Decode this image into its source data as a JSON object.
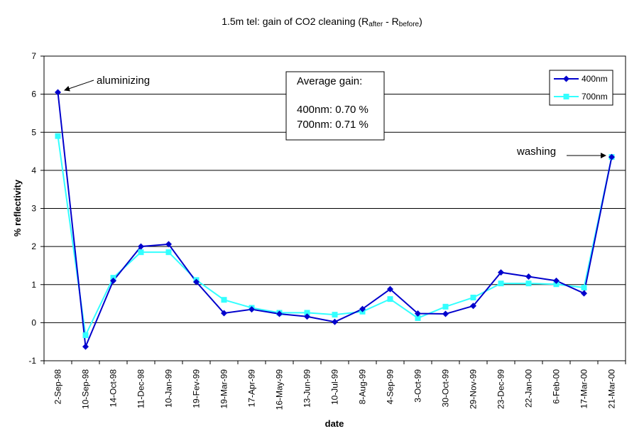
{
  "chart_data": {
    "type": "line",
    "title_main": "1.5m tel: gain of CO2 cleaning (R",
    "title_sub1": "after",
    "title_mid": " - R",
    "title_sub2": "before",
    "title_end": ")",
    "xlabel": "date",
    "ylabel": "% reflectivity",
    "ylim": [
      -1,
      7
    ],
    "yticks": [
      -1,
      0,
      1,
      2,
      3,
      4,
      5,
      6,
      7
    ],
    "grid": true,
    "legend_position": "top-right",
    "categories": [
      "2-Sep-98",
      "10-Sep-98",
      "14-Oct-98",
      "11-Dec-98",
      "10-Jan-99",
      "19-Fev-99",
      "19-Mar-99",
      "17-Apr-99",
      "16-May-99",
      "13-Jun-99",
      "10-Jul-99",
      "8-Aug-99",
      "4-Sep-99",
      "3-Oct-99",
      "30-Oct-99",
      "29-Nov-99",
      "23-Dec-99",
      "22-Jan-00",
      "6-Feb-00",
      "17-Mar-00",
      "21-Mar-00"
    ],
    "series": [
      {
        "name": "400nm",
        "color": "#0000cc",
        "marker": "diamond",
        "values": [
          6.05,
          -0.63,
          1.1,
          2.0,
          2.06,
          1.07,
          0.25,
          0.35,
          0.23,
          0.16,
          0.02,
          0.36,
          0.88,
          0.24,
          0.23,
          0.44,
          1.32,
          1.21,
          1.1,
          0.77,
          4.35
        ]
      },
      {
        "name": "700nm",
        "color": "#33ffff",
        "marker": "square",
        "values": [
          4.9,
          -0.33,
          1.18,
          1.85,
          1.85,
          1.12,
          0.6,
          0.39,
          0.26,
          0.26,
          0.21,
          0.29,
          0.62,
          0.12,
          0.42,
          0.66,
          1.03,
          1.03,
          1.01,
          0.92,
          4.35
        ]
      }
    ],
    "annotations": {
      "aluminizing": "aluminizing",
      "washing": "washing"
    },
    "gain_box": {
      "heading": "Average gain:",
      "line1": "400nm: 0.70 %",
      "line2": "700nm: 0.71 %"
    }
  }
}
